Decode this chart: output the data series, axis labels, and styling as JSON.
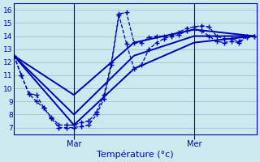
{
  "xlabel": "Température (°c)",
  "bg_color": "#cde8ee",
  "grid_color": "#99bbcc",
  "line_color": "#0000bb",
  "ylim": [
    6.5,
    16.5
  ],
  "yticks": [
    7,
    8,
    9,
    10,
    11,
    12,
    13,
    14,
    15,
    16
  ],
  "xlim": [
    0,
    97
  ],
  "xtick_positions": [
    24,
    72
  ],
  "xtick_labels": [
    "Mar",
    "Mer"
  ],
  "series": [
    {
      "x": [
        0,
        3,
        6,
        9,
        12,
        15,
        18,
        21,
        24,
        27,
        30,
        33,
        36,
        39,
        42,
        45,
        48,
        51,
        54,
        57,
        60,
        63,
        66,
        69,
        72,
        75,
        78,
        81,
        84,
        87,
        90,
        93,
        96
      ],
      "y": [
        12.5,
        11.0,
        9.6,
        9.5,
        8.5,
        7.8,
        7.2,
        7.2,
        7.2,
        7.4,
        7.5,
        8.2,
        9.5,
        12.0,
        15.7,
        15.8,
        13.5,
        13.5,
        13.9,
        14.0,
        14.0,
        14.1,
        14.3,
        14.6,
        14.7,
        14.8,
        14.7,
        14.0,
        13.8,
        13.8,
        13.6,
        14.0,
        14.0
      ],
      "linestyle": "--",
      "lw": 0.9,
      "marker": "+",
      "ms": 4
    },
    {
      "x": [
        0,
        3,
        6,
        9,
        12,
        15,
        18,
        21,
        24,
        27,
        30,
        33,
        36,
        39,
        42,
        45,
        48,
        51,
        54,
        57,
        60,
        63,
        66,
        69,
        72,
        75,
        78,
        81,
        84,
        87,
        90,
        93,
        96
      ],
      "y": [
        12.5,
        11.0,
        9.6,
        9.0,
        8.5,
        7.7,
        7.0,
        7.0,
        7.0,
        7.1,
        7.2,
        8.0,
        9.2,
        11.8,
        15.6,
        13.4,
        11.5,
        11.8,
        13.0,
        13.5,
        13.8,
        14.0,
        14.1,
        14.4,
        14.5,
        14.4,
        14.0,
        13.6,
        13.5,
        13.6,
        13.5,
        13.9,
        14.0
      ],
      "linestyle": "--",
      "lw": 0.9,
      "marker": "+",
      "ms": 4
    },
    {
      "x": [
        0,
        24,
        48,
        72,
        96
      ],
      "y": [
        12.5,
        9.5,
        13.5,
        14.5,
        14.0
      ],
      "linestyle": "-",
      "lw": 1.4,
      "marker": null,
      "ms": 0
    },
    {
      "x": [
        0,
        24,
        48,
        72,
        96
      ],
      "y": [
        12.5,
        7.2,
        11.5,
        13.5,
        14.0
      ],
      "linestyle": "-",
      "lw": 1.4,
      "marker": null,
      "ms": 0
    },
    {
      "x": [
        0,
        24,
        48,
        72,
        96
      ],
      "y": [
        12.5,
        8.0,
        12.5,
        14.0,
        14.0
      ],
      "linestyle": "-",
      "lw": 1.4,
      "marker": null,
      "ms": 0
    }
  ]
}
